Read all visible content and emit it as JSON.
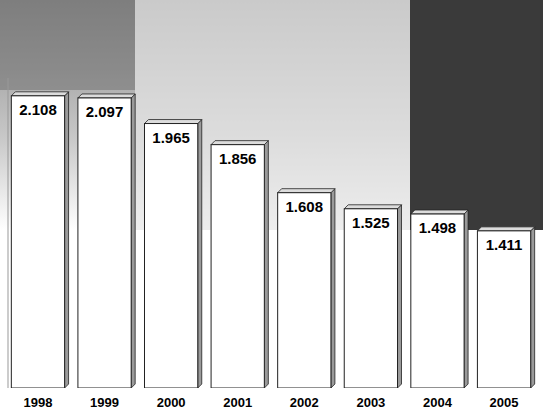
{
  "chart_data": {
    "type": "bar",
    "categories": [
      "1998",
      "1999",
      "2000",
      "2001",
      "2002",
      "2003",
      "2004",
      "2005"
    ],
    "values": [
      2.108,
      2.097,
      1.965,
      1.856,
      1.608,
      1.525,
      1.498,
      1.411
    ],
    "color": "#ffffff",
    "ylim": [
      0.6,
      2.2
    ],
    "data_labels": true,
    "tick_labels": "x"
  }
}
